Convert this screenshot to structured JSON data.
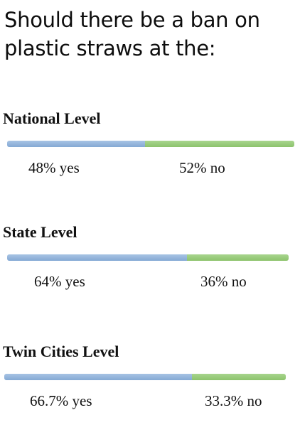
{
  "header": {
    "title_line1": "Should there be a ban on",
    "title_line2": "plastic straws at the:"
  },
  "colors": {
    "yes": "#8fb1da",
    "no": "#96cb78"
  },
  "chart_data": {
    "type": "bar",
    "orientation": "horizontal-stacked",
    "title": "Should there be a ban on plastic straws at the:",
    "categories": [
      "National Level",
      "State Level",
      "Twin Cities Level"
    ],
    "series": [
      {
        "values": [
          48,
          64,
          66.7
        ]
      },
      {
        "values": [
          52,
          36,
          33.3
        ]
      }
    ],
    "ylim": [
      0,
      100
    ],
    "grid": false,
    "levels": [
      {
        "label": "National Level",
        "yes": 48,
        "no": 52,
        "yes_text": "48% yes",
        "no_text": "52% no"
      },
      {
        "label": "State Level",
        "yes": 64,
        "no": 36,
        "yes_text": "64% yes",
        "no_text": "36% no"
      },
      {
        "label": "Twin Cities Level",
        "yes": 66.7,
        "no": 33.3,
        "yes_text": "66.7% yes",
        "no_text": "33.3% no"
      }
    ]
  }
}
